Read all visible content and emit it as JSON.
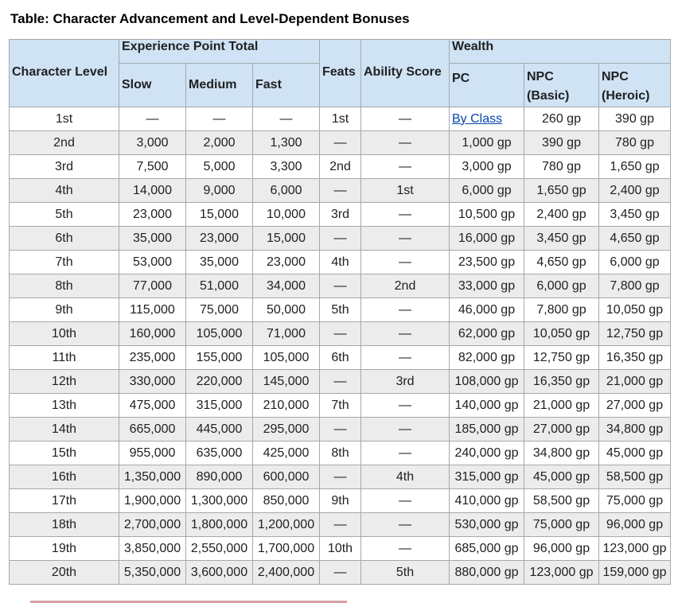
{
  "caption": "Table: Character Advancement and Level-Dependent Bonuses",
  "headers": {
    "character_level": "Character Level",
    "experience_point_total": "Experience Point Total",
    "slow": "Slow",
    "medium": "Medium",
    "fast": "Fast",
    "feats": "Feats",
    "ability_score": "Ability Score",
    "wealth": "Wealth",
    "pc": "PC",
    "npc_basic_1": "NPC",
    "npc_basic_2": "(Basic)",
    "npc_heroic_1": "NPC",
    "npc_heroic_2": "(Heroic)"
  },
  "rows": [
    {
      "level": "1st",
      "slow": "—",
      "medium": "—",
      "fast": "—",
      "feat": "1st",
      "ability": "—",
      "pc": "By Class",
      "npc_basic": "260 gp",
      "npc_heroic": "390 gp"
    },
    {
      "level": "2nd",
      "slow": "3,000",
      "medium": "2,000",
      "fast": "1,300",
      "feat": "—",
      "ability": "—",
      "pc": "1,000 gp",
      "npc_basic": "390 gp",
      "npc_heroic": "780 gp"
    },
    {
      "level": "3rd",
      "slow": "7,500",
      "medium": "5,000",
      "fast": "3,300",
      "feat": "2nd",
      "ability": "—",
      "pc": "3,000 gp",
      "npc_basic": "780 gp",
      "npc_heroic": "1,650 gp"
    },
    {
      "level": "4th",
      "slow": "14,000",
      "medium": "9,000",
      "fast": "6,000",
      "feat": "—",
      "ability": "1st",
      "pc": "6,000 gp",
      "npc_basic": "1,650 gp",
      "npc_heroic": "2,400 gp"
    },
    {
      "level": "5th",
      "slow": "23,000",
      "medium": "15,000",
      "fast": "10,000",
      "feat": "3rd",
      "ability": "—",
      "pc": "10,500 gp",
      "npc_basic": "2,400 gp",
      "npc_heroic": "3,450 gp"
    },
    {
      "level": "6th",
      "slow": "35,000",
      "medium": "23,000",
      "fast": "15,000",
      "feat": "—",
      "ability": "—",
      "pc": "16,000 gp",
      "npc_basic": "3,450 gp",
      "npc_heroic": "4,650 gp"
    },
    {
      "level": "7th",
      "slow": "53,000",
      "medium": "35,000",
      "fast": "23,000",
      "feat": "4th",
      "ability": "—",
      "pc": "23,500 gp",
      "npc_basic": "4,650 gp",
      "npc_heroic": "6,000 gp"
    },
    {
      "level": "8th",
      "slow": "77,000",
      "medium": "51,000",
      "fast": "34,000",
      "feat": "—",
      "ability": "2nd",
      "pc": "33,000 gp",
      "npc_basic": "6,000 gp",
      "npc_heroic": "7,800 gp"
    },
    {
      "level": "9th",
      "slow": "115,000",
      "medium": "75,000",
      "fast": "50,000",
      "feat": "5th",
      "ability": "—",
      "pc": "46,000 gp",
      "npc_basic": "7,800 gp",
      "npc_heroic": "10,050 gp"
    },
    {
      "level": "10th",
      "slow": "160,000",
      "medium": "105,000",
      "fast": "71,000",
      "feat": "—",
      "ability": "—",
      "pc": "62,000 gp",
      "npc_basic": "10,050 gp",
      "npc_heroic": "12,750 gp"
    },
    {
      "level": "11th",
      "slow": "235,000",
      "medium": "155,000",
      "fast": "105,000",
      "feat": "6th",
      "ability": "—",
      "pc": "82,000 gp",
      "npc_basic": "12,750 gp",
      "npc_heroic": "16,350 gp"
    },
    {
      "level": "12th",
      "slow": "330,000",
      "medium": "220,000",
      "fast": "145,000",
      "feat": "—",
      "ability": "3rd",
      "pc": "108,000 gp",
      "npc_basic": "16,350 gp",
      "npc_heroic": "21,000 gp"
    },
    {
      "level": "13th",
      "slow": "475,000",
      "medium": "315,000",
      "fast": "210,000",
      "feat": "7th",
      "ability": "—",
      "pc": "140,000 gp",
      "npc_basic": "21,000 gp",
      "npc_heroic": "27,000 gp"
    },
    {
      "level": "14th",
      "slow": "665,000",
      "medium": "445,000",
      "fast": "295,000",
      "feat": "—",
      "ability": "—",
      "pc": "185,000 gp",
      "npc_basic": "27,000 gp",
      "npc_heroic": "34,800 gp"
    },
    {
      "level": "15th",
      "slow": "955,000",
      "medium": "635,000",
      "fast": "425,000",
      "feat": "8th",
      "ability": "—",
      "pc": "240,000 gp",
      "npc_basic": "34,800 gp",
      "npc_heroic": "45,000 gp"
    },
    {
      "level": "16th",
      "slow": "1,350,000",
      "medium": "890,000",
      "fast": "600,000",
      "feat": "—",
      "ability": "4th",
      "pc": "315,000 gp",
      "npc_basic": "45,000 gp",
      "npc_heroic": "58,500 gp"
    },
    {
      "level": "17th",
      "slow": "1,900,000",
      "medium": "1,300,000",
      "fast": "850,000",
      "feat": "9th",
      "ability": "—",
      "pc": "410,000 gp",
      "npc_basic": "58,500 gp",
      "npc_heroic": "75,000 gp"
    },
    {
      "level": "18th",
      "slow": "2,700,000",
      "medium": "1,800,000",
      "fast": "1,200,000",
      "feat": "—",
      "ability": "—",
      "pc": "530,000 gp",
      "npc_basic": "75,000 gp",
      "npc_heroic": "96,000 gp"
    },
    {
      "level": "19th",
      "slow": "3,850,000",
      "medium": "2,550,000",
      "fast": "1,700,000",
      "feat": "10th",
      "ability": "—",
      "pc": "685,000 gp",
      "npc_basic": "96,000 gp",
      "npc_heroic": "123,000 gp"
    },
    {
      "level": "20th",
      "slow": "5,350,000",
      "medium": "3,600,000",
      "fast": "2,400,000",
      "feat": "—",
      "ability": "5th",
      "pc": "880,000 gp",
      "npc_basic": "123,000 gp",
      "npc_heroic": "159,000 gp"
    }
  ],
  "colors": {
    "header_bg": "#cfe3f4",
    "row_even": "#ececec",
    "border": "#a2a9b1",
    "link": "#0645ad"
  }
}
